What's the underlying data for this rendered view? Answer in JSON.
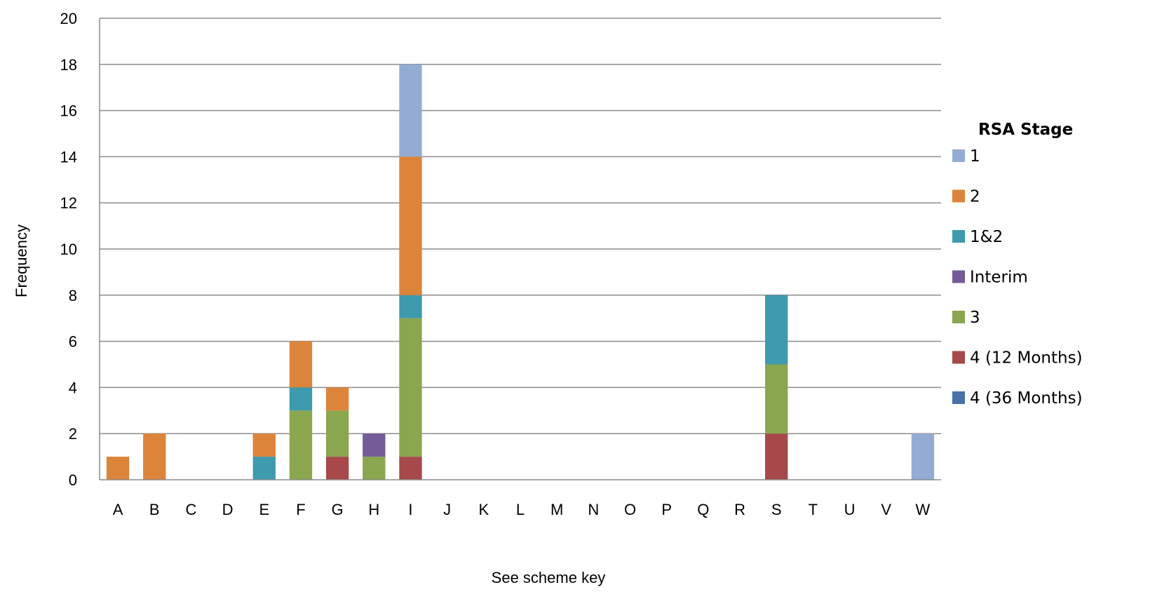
{
  "chart_data": {
    "type": "bar",
    "stacked": true,
    "title": "",
    "xlabel": "See scheme key",
    "ylabel": "Frequency",
    "ylim": [
      0,
      20
    ],
    "yticks": [
      0,
      2,
      4,
      6,
      8,
      10,
      12,
      14,
      16,
      18,
      20
    ],
    "grid": true,
    "categories": [
      "A",
      "B",
      "C",
      "D",
      "E",
      "F",
      "G",
      "H",
      "I",
      "J",
      "K",
      "L",
      "M",
      "N",
      "O",
      "P",
      "Q",
      "R",
      "S",
      "T",
      "U",
      "V",
      "W"
    ],
    "legend": {
      "title": "RSA Stage",
      "placement": "right"
    },
    "series": [
      {
        "name": "4 (36 Months)",
        "color": "#4a72a8",
        "values": [
          0,
          0,
          0,
          0,
          0,
          0,
          0,
          0,
          0,
          0,
          0,
          0,
          0,
          0,
          0,
          0,
          0,
          0,
          0,
          0,
          0,
          0,
          0
        ]
      },
      {
        "name": "4 (12 Months)",
        "color": "#a7484a",
        "values": [
          0,
          0,
          0,
          0,
          0,
          0,
          1,
          0,
          1,
          0,
          0,
          0,
          0,
          0,
          0,
          0,
          0,
          0,
          2,
          0,
          0,
          0,
          0
        ]
      },
      {
        "name": "3",
        "color": "#8aa64f",
        "values": [
          0,
          0,
          0,
          0,
          0,
          3,
          2,
          1,
          6,
          0,
          0,
          0,
          0,
          0,
          0,
          0,
          0,
          0,
          3,
          0,
          0,
          0,
          0
        ]
      },
      {
        "name": "Interim",
        "color": "#735c98",
        "values": [
          0,
          0,
          0,
          0,
          0,
          0,
          0,
          1,
          0,
          0,
          0,
          0,
          0,
          0,
          0,
          0,
          0,
          0,
          0,
          0,
          0,
          0,
          0
        ]
      },
      {
        "name": "1&2",
        "color": "#3e9aad",
        "values": [
          0,
          0,
          0,
          0,
          1,
          1,
          0,
          0,
          1,
          0,
          0,
          0,
          0,
          0,
          0,
          0,
          0,
          0,
          3,
          0,
          0,
          0,
          0
        ]
      },
      {
        "name": "2",
        "color": "#dd843b",
        "values": [
          1,
          2,
          0,
          0,
          1,
          2,
          1,
          0,
          6,
          0,
          0,
          0,
          0,
          0,
          0,
          0,
          0,
          0,
          0,
          0,
          0,
          0,
          0
        ]
      },
      {
        "name": "1",
        "color": "#94acd3",
        "values": [
          0,
          0,
          0,
          0,
          0,
          0,
          0,
          0,
          4,
          0,
          0,
          0,
          0,
          0,
          0,
          0,
          0,
          0,
          0,
          0,
          0,
          0,
          2
        ]
      }
    ],
    "legend_order": [
      "1",
      "2",
      "1&2",
      "Interim",
      "3",
      "4 (12 Months)",
      "4 (36 Months)"
    ]
  }
}
